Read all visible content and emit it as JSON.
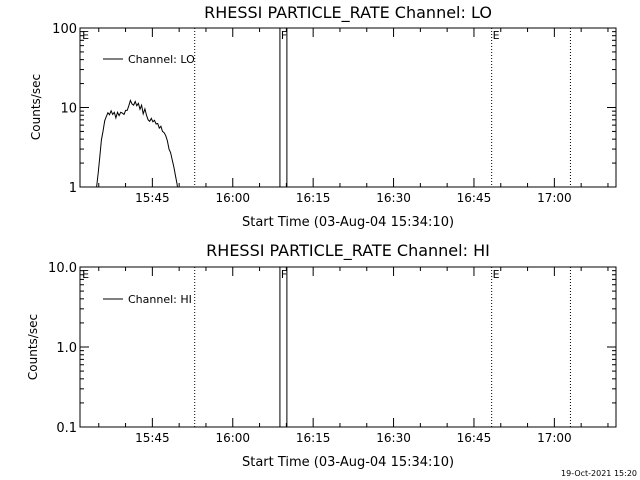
{
  "timestamp": "19-Oct-2021 15:20",
  "x_axis": {
    "start_time": "03-Aug-04 15:34:10",
    "label": "Start Time (03-Aug-04 15:34:10)",
    "range_minutes": [
      -2.5,
      97.5
    ],
    "ticks": [
      {
        "label": "15:45",
        "minute": 11
      },
      {
        "label": "16:00",
        "minute": 26
      },
      {
        "label": "16:15",
        "minute": 41
      },
      {
        "label": "16:30",
        "minute": 56
      },
      {
        "label": "16:45",
        "minute": 71
      },
      {
        "label": "17:00",
        "minute": 86
      }
    ]
  },
  "markers": [
    {
      "label": "E",
      "minute": -2.3,
      "style": "none"
    },
    {
      "label": "",
      "minute": 18.9,
      "style": "dotted"
    },
    {
      "label": "F",
      "minute": 34.8,
      "style": "solid"
    },
    {
      "label": "",
      "minute": 36.1,
      "style": "solid"
    },
    {
      "label": "E",
      "minute": 74.3,
      "style": "dotted"
    },
    {
      "label": "",
      "minute": 89.0,
      "style": "dotted"
    }
  ],
  "chart_data": [
    {
      "type": "line",
      "title": "RHESSI PARTICLE_RATE Channel: LO",
      "xlabel": "Start Time (03-Aug-04 15:34:10)",
      "ylabel": "Counts/sec",
      "yscale": "log",
      "ylim": [
        1,
        100
      ],
      "yticks": [
        {
          "label": "100",
          "value": 100
        },
        {
          "label": "10",
          "value": 10
        },
        {
          "label": "1",
          "value": 1
        }
      ],
      "grid": false,
      "legend": {
        "position": "top-left"
      },
      "series": [
        {
          "name": "Channel: LO",
          "color": "#000000",
          "x": [
            0.2,
            0.6,
            0.9,
            1.2,
            1.5,
            1.8,
            2.1,
            2.4,
            2.7,
            3.0,
            3.3,
            3.6,
            3.9,
            4.2,
            4.5,
            4.8,
            5.1,
            5.4,
            5.7,
            6.0,
            6.3,
            6.6,
            6.9,
            7.2,
            7.5,
            7.8,
            8.1,
            8.4,
            8.7,
            9.0,
            9.3,
            9.6,
            9.9,
            10.2,
            10.5,
            10.8,
            11.1,
            11.4,
            11.7,
            12.0,
            12.3,
            12.6,
            12.9,
            13.2,
            13.5,
            13.8,
            14.1,
            14.4,
            14.7,
            15.0,
            15.3,
            15.6,
            15.9
          ],
          "y": [
            0.8,
            1.0,
            1.5,
            2.4,
            3.9,
            5.0,
            6.8,
            7.7,
            8.6,
            8.1,
            9.1,
            8.2,
            8.7,
            7.4,
            8.7,
            7.9,
            8.7,
            8.5,
            8.2,
            9.2,
            9.2,
            10.5,
            12.3,
            11.1,
            10.7,
            11.9,
            10.5,
            11.3,
            9.5,
            10.7,
            8.3,
            9.6,
            8.0,
            7.0,
            6.7,
            7.3,
            6.6,
            6.9,
            6.2,
            6.3,
            5.5,
            5.8,
            5.0,
            4.8,
            4.4,
            3.8,
            3.0,
            2.7,
            2.2,
            1.8,
            1.4,
            1.1,
            0.8
          ]
        }
      ]
    },
    {
      "type": "line",
      "title": "RHESSI PARTICLE_RATE Channel: HI",
      "xlabel": "Start Time (03-Aug-04 15:34:10)",
      "ylabel": "Counts/sec",
      "yscale": "log",
      "ylim": [
        0.1,
        10
      ],
      "yticks": [
        {
          "label": "10.0",
          "value": 10
        },
        {
          "label": "1.0",
          "value": 1
        },
        {
          "label": "0.1",
          "value": 0.1
        }
      ],
      "grid": false,
      "legend": {
        "position": "top-left"
      },
      "series": [
        {
          "name": "Channel: HI",
          "color": "#000000",
          "x": [],
          "y": []
        }
      ]
    }
  ]
}
